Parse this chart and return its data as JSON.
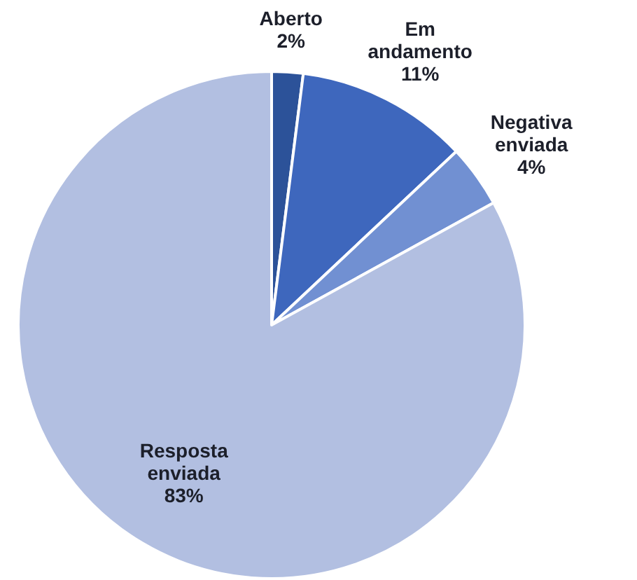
{
  "chart_data": {
    "type": "pie",
    "categories": [
      "Aberto",
      "Em andamento",
      "Negativa enviada",
      "Resposta enviada"
    ],
    "values": [
      2,
      11,
      4,
      83
    ],
    "value_labels": [
      "2%",
      "11%",
      "4%",
      "83%"
    ],
    "colors": [
      "#2c5299",
      "#3e67bd",
      "#7190d2",
      "#b2bfe1"
    ]
  }
}
